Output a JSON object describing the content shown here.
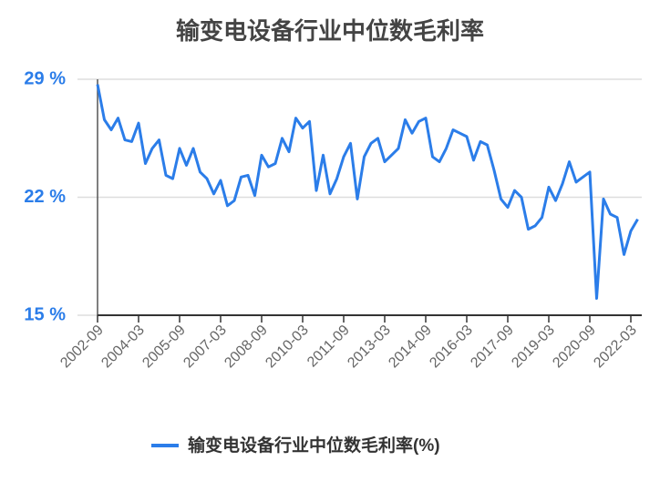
{
  "chart_data": {
    "type": "line",
    "title": "输变电设备行业中位数毛利率",
    "categories": [
      "2002-09",
      null,
      null,
      null,
      null,
      null,
      "2004-03",
      null,
      null,
      null,
      null,
      null,
      "2005-09",
      null,
      null,
      null,
      null,
      null,
      "2007-03",
      null,
      null,
      null,
      null,
      null,
      "2008-09",
      null,
      null,
      null,
      null,
      null,
      "2010-03",
      null,
      null,
      null,
      null,
      null,
      "2011-09",
      null,
      null,
      null,
      null,
      null,
      "2013-03",
      null,
      null,
      null,
      null,
      null,
      "2014-09",
      null,
      null,
      null,
      null,
      null,
      "2016-03",
      null,
      null,
      null,
      null,
      null,
      "2017-09",
      null,
      null,
      null,
      null,
      null,
      "2019-03",
      null,
      null,
      null,
      null,
      null,
      "2020-09",
      null,
      null,
      null,
      null,
      null,
      "2022-03",
      null
    ],
    "series": [
      {
        "name": "输变电设备行业中位数毛利率(%)",
        "color": "#2b7de9",
        "values": [
          28.7,
          26.6,
          26.0,
          26.7,
          25.4,
          25.3,
          26.4,
          24.0,
          24.9,
          25.4,
          23.3,
          23.1,
          24.9,
          23.9,
          24.9,
          23.5,
          23.1,
          22.2,
          23.0,
          21.5,
          21.8,
          23.2,
          23.3,
          22.1,
          24.5,
          23.8,
          24.0,
          25.5,
          24.7,
          26.7,
          26.1,
          26.5,
          22.4,
          24.5,
          22.2,
          23.1,
          24.4,
          25.2,
          21.9,
          24.4,
          25.2,
          25.5,
          24.1,
          24.5,
          24.9,
          26.6,
          25.8,
          26.5,
          26.7,
          24.4,
          24.1,
          24.9,
          26.0,
          25.8,
          25.6,
          24.2,
          25.3,
          25.1,
          23.6,
          21.9,
          21.4,
          22.4,
          22.0,
          20.1,
          20.3,
          20.8,
          22.6,
          21.8,
          22.8,
          24.1,
          22.9,
          23.2,
          23.5,
          16.0,
          21.9,
          21.0,
          20.8,
          18.6,
          20.0,
          20.7
        ]
      }
    ],
    "ylim": [
      15,
      29
    ],
    "yticks": [
      {
        "value": 15,
        "label": "15 %"
      },
      {
        "value": 22,
        "label": "22 %"
      },
      {
        "value": 29,
        "label": "29 %"
      }
    ],
    "grid": true,
    "legend": "bottom"
  }
}
